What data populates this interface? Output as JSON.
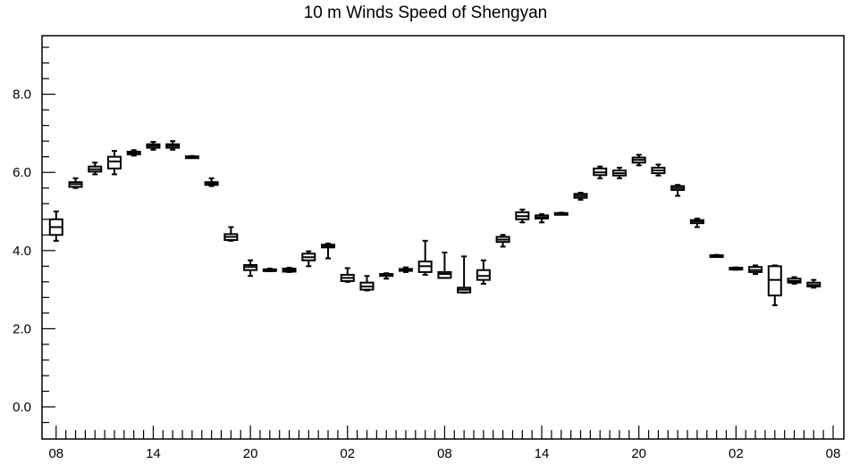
{
  "chart_data": {
    "type": "box",
    "title": "10 m Winds Speed of Shengyan",
    "xlabel": "",
    "ylabel": "",
    "ylim": [
      -0.8,
      9.5
    ],
    "yticks": [
      "0.0",
      "2.0",
      "4.0",
      "6.0",
      "8.0"
    ],
    "ytick_values": [
      0,
      2,
      4,
      6,
      8
    ],
    "x_start_hour": 0,
    "x_range": [
      -0.5,
      79.5
    ],
    "xticks": [
      {
        "hour": 0,
        "label": "08"
      },
      {
        "hour": 10,
        "label": "14"
      },
      {
        "hour": 20,
        "label": "20"
      },
      {
        "hour": 30,
        "label": "02"
      },
      {
        "hour": 40,
        "label": "08"
      },
      {
        "hour": 50,
        "label": "14"
      },
      {
        "hour": 60,
        "label": "20"
      },
      {
        "hour": 70,
        "label": "02"
      },
      {
        "hour": 80,
        "label": "08"
      }
    ],
    "boxes": [
      {
        "x": 0,
        "min": 4.25,
        "q1": 4.4,
        "median": 4.6,
        "q3": 4.8,
        "max": 5.0
      },
      {
        "x": 2,
        "min": 5.6,
        "q1": 5.63,
        "median": 5.7,
        "q3": 5.75,
        "max": 5.85
      },
      {
        "x": 4,
        "min": 5.95,
        "q1": 6.02,
        "median": 6.08,
        "q3": 6.15,
        "max": 6.25
      },
      {
        "x": 6,
        "min": 5.95,
        "q1": 6.1,
        "median": 6.28,
        "q3": 6.4,
        "max": 6.55
      },
      {
        "x": 8,
        "min": 6.43,
        "q1": 6.46,
        "median": 6.5,
        "q3": 6.53,
        "max": 6.57
      },
      {
        "x": 10,
        "min": 6.58,
        "q1": 6.63,
        "median": 6.68,
        "q3": 6.72,
        "max": 6.78
      },
      {
        "x": 12,
        "min": 6.58,
        "q1": 6.63,
        "median": 6.68,
        "q3": 6.72,
        "max": 6.8
      },
      {
        "x": 14,
        "min": 6.38,
        "q1": 6.39,
        "median": 6.4,
        "q3": 6.41,
        "max": 6.42
      },
      {
        "x": 16,
        "min": 5.65,
        "q1": 5.68,
        "median": 5.72,
        "q3": 5.75,
        "max": 5.85
      },
      {
        "x": 18,
        "min": 4.25,
        "q1": 4.27,
        "median": 4.35,
        "q3": 4.42,
        "max": 4.6
      },
      {
        "x": 20,
        "min": 3.35,
        "q1": 3.5,
        "median": 3.58,
        "q3": 3.63,
        "max": 3.75
      },
      {
        "x": 22,
        "min": 3.47,
        "q1": 3.49,
        "median": 3.5,
        "q3": 3.52,
        "max": 3.54
      },
      {
        "x": 24,
        "min": 3.45,
        "q1": 3.46,
        "median": 3.5,
        "q3": 3.54,
        "max": 3.56
      },
      {
        "x": 26,
        "min": 3.6,
        "q1": 3.75,
        "median": 3.83,
        "q3": 3.92,
        "max": 3.98
      },
      {
        "x": 28,
        "min": 3.8,
        "q1": 4.08,
        "median": 4.12,
        "q3": 4.15,
        "max": 4.18
      },
      {
        "x": 30,
        "min": 3.2,
        "q1": 3.22,
        "median": 3.3,
        "q3": 3.38,
        "max": 3.55
      },
      {
        "x": 32,
        "min": 2.98,
        "q1": 3.0,
        "median": 3.08,
        "q3": 3.18,
        "max": 3.35
      },
      {
        "x": 34,
        "min": 3.28,
        "q1": 3.35,
        "median": 3.37,
        "q3": 3.4,
        "max": 3.42
      },
      {
        "x": 36,
        "min": 3.45,
        "q1": 3.48,
        "median": 3.5,
        "q3": 3.53,
        "max": 3.57
      },
      {
        "x": 38,
        "min": 3.38,
        "q1": 3.45,
        "median": 3.6,
        "q3": 3.72,
        "max": 4.25
      },
      {
        "x": 40,
        "min": 3.3,
        "q1": 3.3,
        "median": 3.4,
        "q3": 3.45,
        "max": 3.95
      },
      {
        "x": 42,
        "min": 2.92,
        "q1": 2.93,
        "median": 3.0,
        "q3": 3.05,
        "max": 3.85
      },
      {
        "x": 44,
        "min": 3.15,
        "q1": 3.25,
        "median": 3.35,
        "q3": 3.5,
        "max": 3.75
      },
      {
        "x": 46,
        "min": 4.1,
        "q1": 4.22,
        "median": 4.28,
        "q3": 4.35,
        "max": 4.4
      },
      {
        "x": 48,
        "min": 4.72,
        "q1": 4.8,
        "median": 4.88,
        "q3": 4.98,
        "max": 5.05
      },
      {
        "x": 50,
        "min": 4.72,
        "q1": 4.82,
        "median": 4.85,
        "q3": 4.9,
        "max": 4.93
      },
      {
        "x": 52,
        "min": 4.93,
        "q1": 4.94,
        "median": 4.95,
        "q3": 4.96,
        "max": 4.97
      },
      {
        "x": 54,
        "min": 5.3,
        "q1": 5.35,
        "median": 5.4,
        "q3": 5.45,
        "max": 5.48
      },
      {
        "x": 56,
        "min": 5.85,
        "q1": 5.93,
        "median": 6.0,
        "q3": 6.1,
        "max": 6.15
      },
      {
        "x": 58,
        "min": 5.85,
        "q1": 5.92,
        "median": 5.98,
        "q3": 6.05,
        "max": 6.12
      },
      {
        "x": 60,
        "min": 6.18,
        "q1": 6.25,
        "median": 6.32,
        "q3": 6.38,
        "max": 6.45
      },
      {
        "x": 62,
        "min": 5.92,
        "q1": 5.98,
        "median": 6.05,
        "q3": 6.12,
        "max": 6.2
      },
      {
        "x": 64,
        "min": 5.4,
        "q1": 5.55,
        "median": 5.6,
        "q3": 5.65,
        "max": 5.68
      },
      {
        "x": 66,
        "min": 4.6,
        "q1": 4.7,
        "median": 4.75,
        "q3": 4.78,
        "max": 4.82
      },
      {
        "x": 68,
        "min": 3.85,
        "q1": 3.86,
        "median": 3.87,
        "q3": 3.88,
        "max": 3.89
      },
      {
        "x": 70,
        "min": 3.51,
        "q1": 3.52,
        "median": 3.54,
        "q3": 3.56,
        "max": 3.57
      },
      {
        "x": 72,
        "min": 3.4,
        "q1": 3.45,
        "median": 3.5,
        "q3": 3.58,
        "max": 3.62
      },
      {
        "x": 74,
        "min": 2.6,
        "q1": 2.85,
        "median": 3.25,
        "q3": 3.6,
        "max": 3.62
      },
      {
        "x": 76,
        "min": 3.15,
        "q1": 3.18,
        "median": 3.22,
        "q3": 3.28,
        "max": 3.32
      },
      {
        "x": 78,
        "min": 3.05,
        "q1": 3.08,
        "median": 3.12,
        "q3": 3.18,
        "max": 3.25
      }
    ]
  }
}
